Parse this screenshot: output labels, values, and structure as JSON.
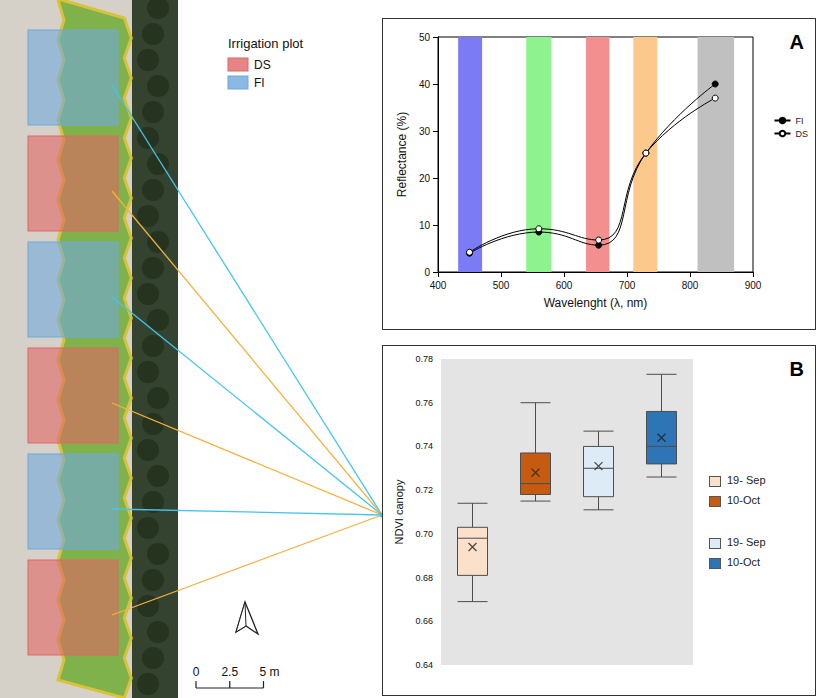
{
  "map": {
    "legend_title": "Irrigation plot",
    "legend_items": [
      {
        "name": "DS",
        "color": "#e06666"
      },
      {
        "name": "FI",
        "color": "#6fa8dc"
      }
    ],
    "plot_sequence": [
      "FI",
      "DS",
      "FI",
      "DS",
      "FI",
      "DS"
    ],
    "link_colors": {
      "FI": "#45c4ef",
      "DS": "#f4b13e"
    },
    "scale_bar": [
      {
        "value": 0,
        "label": "0"
      },
      {
        "value": 2.5,
        "label": "2.5"
      },
      {
        "value": 5,
        "label": "5 m"
      }
    ]
  },
  "chart_data": [
    {
      "type": "line",
      "title": "A",
      "x_label": "Wavelenght (λ, nm)",
      "y_label": "Reflectance (%)",
      "x": [
        450,
        560,
        655,
        730,
        840
      ],
      "series": [
        {
          "name": "FI",
          "color": "#000000",
          "marker": "filled",
          "line_style": "solid",
          "values": [
            4.0,
            8.5,
            5.7,
            25.3,
            40.0
          ]
        },
        {
          "name": "DS",
          "color": "#000000",
          "marker": "open",
          "line_style": "solid",
          "values": [
            4.2,
            9.2,
            6.8,
            25.3,
            37.0
          ]
        }
      ],
      "bands": [
        {
          "range": [
            432,
            470
          ],
          "color": "#7b7bf5"
        },
        {
          "range": [
            540,
            580
          ],
          "color": "#8ef28e"
        },
        {
          "range": [
            635,
            672
          ],
          "color": "#f48f8f"
        },
        {
          "range": [
            710,
            748
          ],
          "color": "#fcc88c"
        },
        {
          "range": [
            812,
            870
          ],
          "color": "#c0c0c0"
        }
      ],
      "xlim": [
        400,
        900
      ],
      "xticks": [
        400,
        500,
        600,
        700,
        800,
        900
      ],
      "ylim": [
        0,
        50
      ],
      "yticks": [
        0,
        10,
        20,
        30,
        40,
        50
      ],
      "grid": false,
      "legend": "right"
    },
    {
      "type": "boxplot",
      "title": "B",
      "y_label": "NDVI canopy",
      "categories": [
        null,
        null,
        null,
        null
      ],
      "series": [
        {
          "name": "19- Sep",
          "color": "#fbe0cc",
          "box": [
            0.669,
            0.681,
            0.698,
            0.703,
            0.714
          ],
          "mean": 0.694
        },
        {
          "name": "10-Oct",
          "color": "#c55a11",
          "box": [
            0.715,
            0.718,
            0.723,
            0.737,
            0.76
          ],
          "mean": 0.728
        },
        {
          "name": "19- Sep",
          "color": "#ddebf7",
          "box": [
            0.711,
            0.717,
            0.73,
            0.74,
            0.747
          ],
          "mean": 0.731
        },
        {
          "name": "10-Oct",
          "color": "#2e75b6",
          "box": [
            0.726,
            0.732,
            0.74,
            0.756,
            0.773
          ],
          "mean": 0.744
        }
      ],
      "ylim": [
        0.64,
        0.78
      ],
      "yticks": [
        0.64,
        0.66,
        0.68,
        {
          "value": 0.7,
          "label": "0.70"
        },
        0.72,
        0.74,
        0.76,
        0.78
      ],
      "grid": false,
      "legend": "right",
      "tick_labels": "y"
    }
  ]
}
